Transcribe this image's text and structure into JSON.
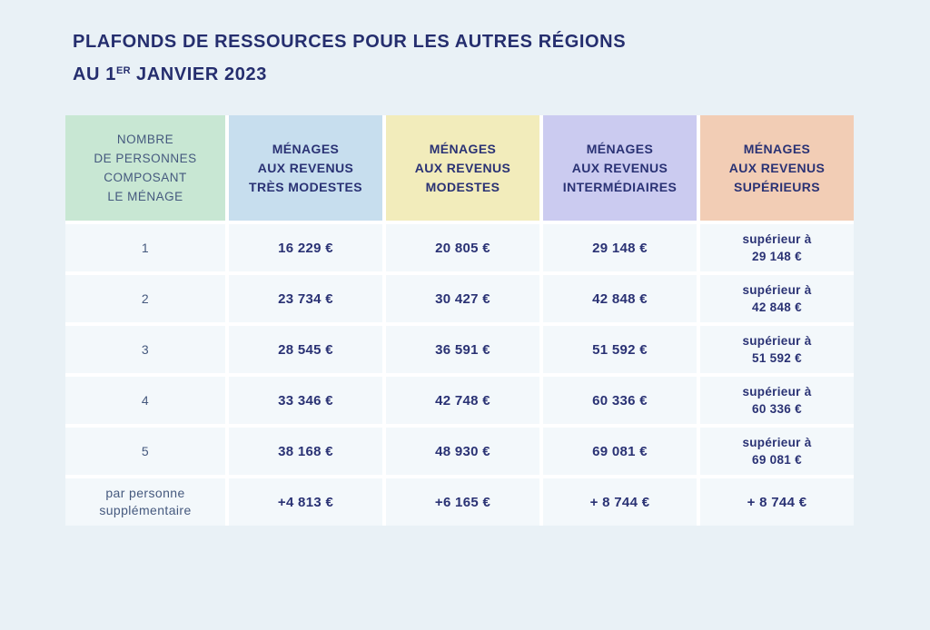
{
  "page": {
    "background": "#e9f1f6"
  },
  "title": {
    "line1": "PLAFONDS DE RESSOURCES POUR LES AUTRES RÉGIONS",
    "line2_prefix": "AU 1",
    "line2_sup": "ER",
    "line2_suffix": " JANVIER 2023",
    "color": "#252e6e"
  },
  "table": {
    "gap_color": "#ffffff",
    "cell_background": "#f3f8fb",
    "header_text_color": "#2a3274",
    "label_text_color": "#45597e",
    "value_text_color": "#2a3274",
    "columns": [
      {
        "id": "household-size",
        "label": "NOMBRE\nDE PERSONNES\nCOMPOSANT\nLE MÉNAGE",
        "bg": "#c8e7d3"
      },
      {
        "id": "revenus-tres-modestes",
        "label": "MÉNAGES\nAUX REVENUS\nTRÈS MODESTES",
        "bg": "#c7deee"
      },
      {
        "id": "revenus-modestes",
        "label": "MÉNAGES\nAUX REVENUS\nMODESTES",
        "bg": "#f2ecbb"
      },
      {
        "id": "revenus-intermediaires",
        "label": "MÉNAGES\nAUX REVENUS\nINTERMÉDIAIRES",
        "bg": "#cbcbf0"
      },
      {
        "id": "revenus-superieurs",
        "label": "MÉNAGES\nAUX REVENUS\nSUPÉRIEURS",
        "bg": "#f2cdb5"
      }
    ],
    "rows": [
      {
        "label": "1",
        "values": [
          "16 229 €",
          "20 805 €",
          "29 148 €"
        ],
        "superior": "supérieur à\n29 148 €"
      },
      {
        "label": "2",
        "values": [
          "23 734 €",
          "30 427 €",
          "42 848 €"
        ],
        "superior": "supérieur à\n42 848 €"
      },
      {
        "label": "3",
        "values": [
          "28 545 €",
          "36 591 €",
          "51 592 €"
        ],
        "superior": "supérieur à\n51 592 €"
      },
      {
        "label": "4",
        "values": [
          "33 346 €",
          "42 748 €",
          "60 336 €"
        ],
        "superior": "supérieur à\n60 336 €"
      },
      {
        "label": "5",
        "values": [
          "38 168 €",
          "48 930 €",
          "69 081 €"
        ],
        "superior": "supérieur à\n69 081 €"
      },
      {
        "label": "par personne\nsupplémentaire",
        "values": [
          "+4 813 €",
          "+6 165 €",
          "+ 8 744 €"
        ],
        "superior": "+ 8 744 €"
      }
    ]
  }
}
